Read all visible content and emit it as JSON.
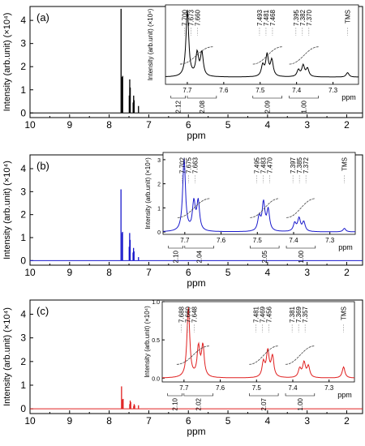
{
  "chart_data": [
    {
      "type": "line",
      "panel_label": "(a)",
      "color": "#000000",
      "xlabel": "ppm",
      "ylabel": "Intensity (arb.unit) (×10⁴)",
      "xlim": [
        10,
        1.6
      ],
      "ylim": [
        -0.2,
        4.6
      ],
      "xticks": [
        "10",
        "9",
        "8",
        "7",
        "6",
        "5",
        "4",
        "3",
        "2"
      ],
      "yticks": [
        "0",
        "1",
        "2",
        "3",
        "4"
      ],
      "peaks": [
        {
          "ppm": 7.7,
          "height": 4.5
        },
        {
          "ppm": 7.673,
          "height": 1.55
        },
        {
          "ppm": 7.66,
          "height": 1.6
        },
        {
          "ppm": 7.493,
          "height": 0.75
        },
        {
          "ppm": 7.481,
          "height": 1.45
        },
        {
          "ppm": 7.468,
          "height": 1.1
        },
        {
          "ppm": 7.395,
          "height": 0.45
        },
        {
          "ppm": 7.382,
          "height": 0.75
        },
        {
          "ppm": 7.37,
          "height": 0.55
        },
        {
          "ppm": 7.26,
          "height": 0.3
        }
      ],
      "inset": {
        "xlabel": "ppm",
        "ylabel": "Intensity (arb.unit) (×10⁴)",
        "xlim": [
          7.76,
          7.23
        ],
        "ylim": [
          -0.1,
          1.0
        ],
        "xticks": [
          "7.7",
          "7.6",
          "7.5",
          "7.4",
          "7.3"
        ],
        "yticks": [],
        "peak_labels": [
          {
            "group": 1,
            "labels": [
              "7.700",
              "7.673",
              "7.660"
            ]
          },
          {
            "group": 2,
            "labels": [
              "7.493",
              "7.481",
              "7.468"
            ]
          },
          {
            "group": 3,
            "labels": [
              "7.395",
              "7.382",
              "7.370"
            ]
          },
          {
            "group": 4,
            "labels": [
              "TMS"
            ]
          }
        ],
        "integrals": [
          "2.12",
          "2.08",
          "2.09",
          "1.00"
        ]
      }
    },
    {
      "type": "line",
      "panel_label": "(b)",
      "color": "#1a1acc",
      "xlabel": "ppm",
      "ylabel": "Intensity (arb.unit) (×10⁴)",
      "xlim": [
        10,
        1.6
      ],
      "ylim": [
        -0.2,
        4.6
      ],
      "xticks": [
        "10",
        "9",
        "8",
        "7",
        "6",
        "5",
        "4",
        "3",
        "2"
      ],
      "yticks": [
        "0",
        "1",
        "2",
        "3",
        "4"
      ],
      "peaks": [
        {
          "ppm": 7.702,
          "height": 3.1
        },
        {
          "ppm": 7.675,
          "height": 1.2
        },
        {
          "ppm": 7.663,
          "height": 1.25
        },
        {
          "ppm": 7.495,
          "height": 0.6
        },
        {
          "ppm": 7.483,
          "height": 1.2
        },
        {
          "ppm": 7.47,
          "height": 0.9
        },
        {
          "ppm": 7.397,
          "height": 0.35
        },
        {
          "ppm": 7.385,
          "height": 0.55
        },
        {
          "ppm": 7.372,
          "height": 0.4
        },
        {
          "ppm": 7.26,
          "height": 0.15
        }
      ],
      "inset": {
        "xlabel": "ppm",
        "ylabel": "Intensity (arb.unit) (×10⁴)",
        "xlim": [
          7.76,
          7.23
        ],
        "ylim": [
          -0.1,
          3.3
        ],
        "xticks": [
          "7.7",
          "7.6",
          "7.5",
          "7.4",
          "7.3"
        ],
        "yticks": [
          "0",
          "1",
          "2",
          "3"
        ],
        "peak_labels": [
          {
            "group": 1,
            "labels": [
              "7.702",
              "7.675",
              "7.663"
            ]
          },
          {
            "group": 2,
            "labels": [
              "7.495",
              "7.483",
              "7.470"
            ]
          },
          {
            "group": 3,
            "labels": [
              "7.397",
              "7.385",
              "7.372"
            ]
          },
          {
            "group": 4,
            "labels": [
              "TMS"
            ]
          }
        ],
        "integrals": [
          "2.10",
          "2.04",
          "2.05",
          "1.00"
        ]
      }
    },
    {
      "type": "line",
      "panel_label": "(c)",
      "color": "#e02020",
      "xlabel": "ppm",
      "ylabel": "Intensity (arb.unit) (×10⁴)",
      "xlim": [
        10,
        1.6
      ],
      "ylim": [
        -0.2,
        4.6
      ],
      "xticks": [
        "10",
        "9",
        "8",
        "7",
        "6",
        "5",
        "4",
        "3",
        "2"
      ],
      "yticks": [
        "0",
        "1",
        "2",
        "3",
        "4"
      ],
      "peaks": [
        {
          "ppm": 7.688,
          "height": 0.95
        },
        {
          "ppm": 7.66,
          "height": 0.4
        },
        {
          "ppm": 7.648,
          "height": 0.42
        },
        {
          "ppm": 7.481,
          "height": 0.2
        },
        {
          "ppm": 7.469,
          "height": 0.35
        },
        {
          "ppm": 7.456,
          "height": 0.28
        },
        {
          "ppm": 7.381,
          "height": 0.12
        },
        {
          "ppm": 7.369,
          "height": 0.2
        },
        {
          "ppm": 7.357,
          "height": 0.15
        },
        {
          "ppm": 7.26,
          "height": 0.15
        }
      ],
      "inset": {
        "xlabel": "ppm",
        "ylabel": "Intensity (arb.unit) (×10⁴)",
        "xlim": [
          7.76,
          7.23
        ],
        "ylim": [
          -0.05,
          1.0
        ],
        "xticks": [
          "7.7",
          "7.6",
          "7.5",
          "7.4",
          "7.3"
        ],
        "yticks": [
          "0.0",
          "0.5",
          "1.0"
        ],
        "peak_labels": [
          {
            "group": 1,
            "labels": [
              "7.688",
              "7.660",
              "7.648"
            ]
          },
          {
            "group": 2,
            "labels": [
              "7.481",
              "7.469",
              "7.456"
            ]
          },
          {
            "group": 3,
            "labels": [
              "7.381",
              "7.369",
              "7.357"
            ]
          },
          {
            "group": 4,
            "labels": [
              "TMS"
            ]
          }
        ],
        "integrals": [
          "2.10",
          "2.02",
          "2.07",
          "1.00"
        ]
      }
    }
  ]
}
